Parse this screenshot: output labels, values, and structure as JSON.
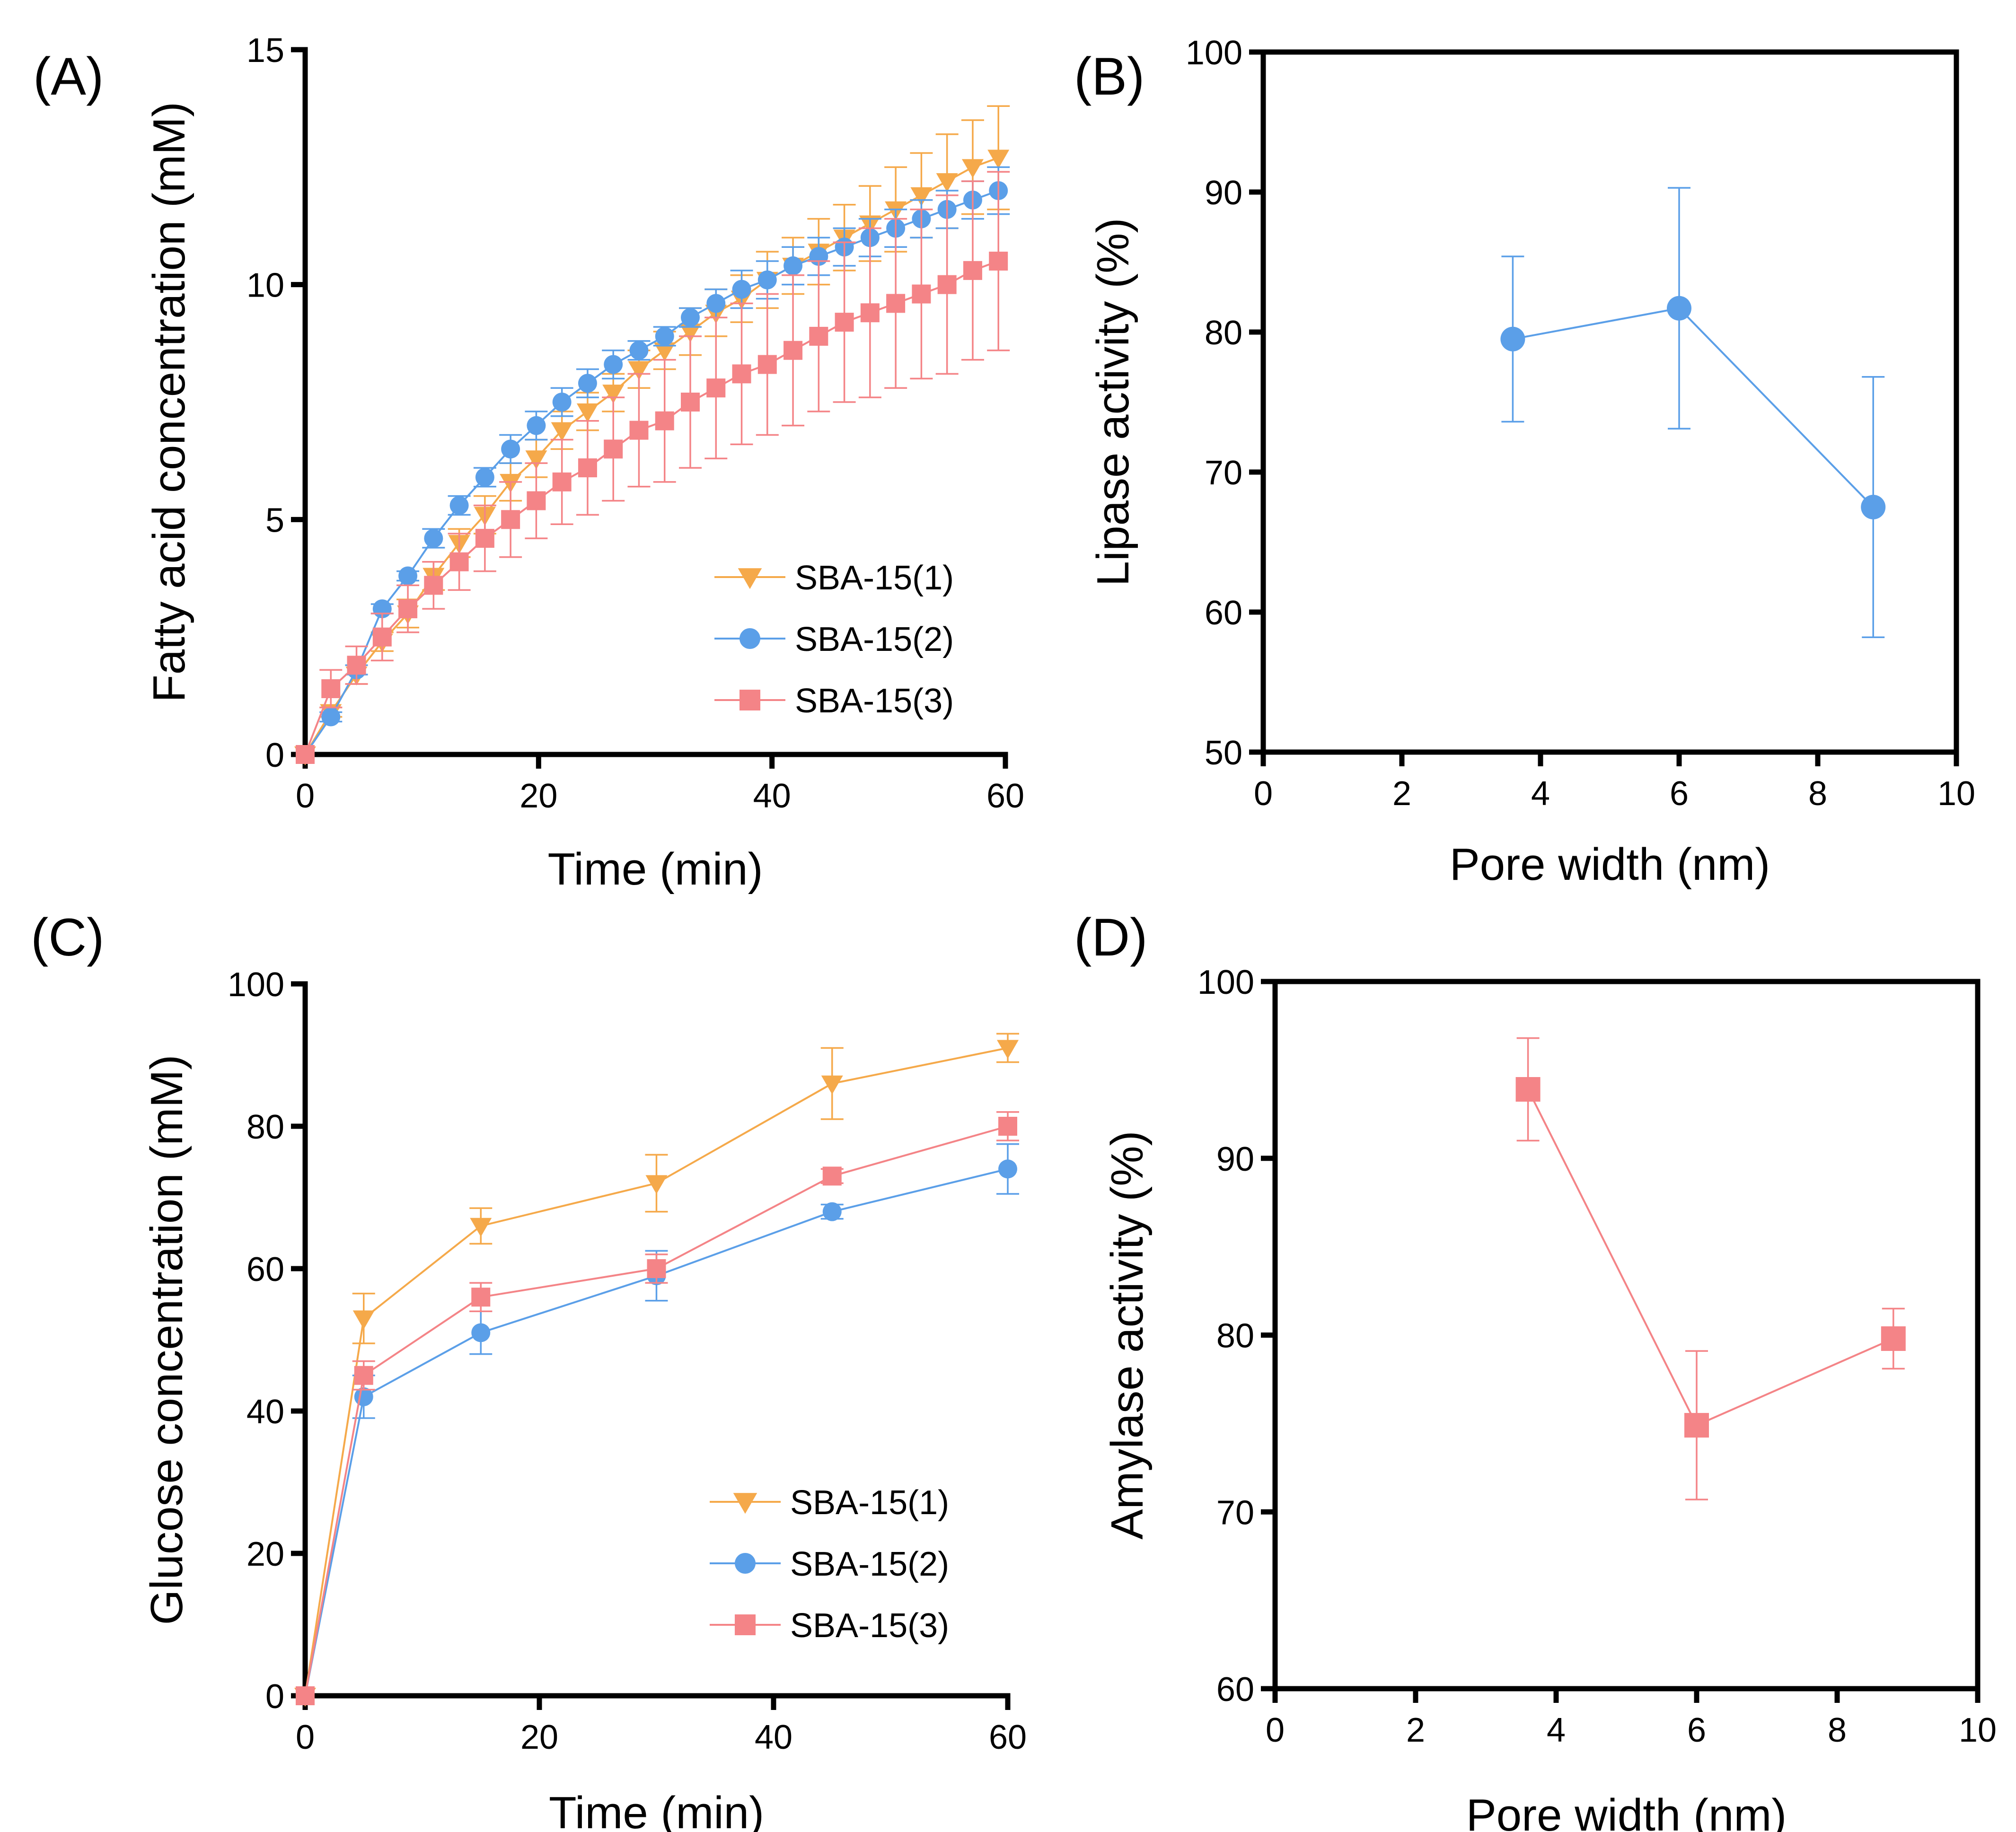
{
  "colors": {
    "orange": "#F5A94A",
    "blue": "#5B9FE8",
    "red": "#F48487",
    "axis": "#000000"
  },
  "chart_data": [
    {
      "panel": "(A)",
      "type": "line",
      "xlabel": "Time (min)",
      "ylabel": "Fatty acid concentration (mM)",
      "xlim": [
        0,
        60
      ],
      "ylim": [
        0,
        15
      ],
      "xticks": [
        0,
        20,
        40,
        60
      ],
      "yticks": [
        0,
        5,
        10,
        15
      ],
      "grid": false,
      "frame": "open",
      "legend": "bottom-right",
      "series": [
        {
          "name": "SBA-15(1)",
          "color": "orange",
          "marker": "triangle-down",
          "x": [
            0,
            2.2,
            4.4,
            6.6,
            8.8,
            11,
            13.2,
            15.4,
            17.6,
            19.8,
            22,
            24.2,
            26.4,
            28.6,
            30.8,
            33,
            35.2,
            37.4,
            39.6,
            41.8,
            44,
            46.2,
            48.4,
            50.6,
            52.8,
            55,
            57.2,
            59.4
          ],
          "y": [
            0,
            0.9,
            1.7,
            2.4,
            3.0,
            3.8,
            4.5,
            5.1,
            5.8,
            6.3,
            6.9,
            7.3,
            7.7,
            8.2,
            8.6,
            9.0,
            9.4,
            9.7,
            10.1,
            10.4,
            10.7,
            11.0,
            11.3,
            11.6,
            11.9,
            12.2,
            12.5,
            12.7
          ],
          "err": [
            0,
            0.1,
            0.2,
            0.2,
            0.3,
            0.3,
            0.3,
            0.4,
            0.4,
            0.4,
            0.4,
            0.4,
            0.4,
            0.4,
            0.4,
            0.5,
            0.5,
            0.5,
            0.6,
            0.6,
            0.7,
            0.7,
            0.8,
            0.9,
            0.9,
            1.0,
            1.0,
            1.1
          ]
        },
        {
          "name": "SBA-15(2)",
          "color": "blue",
          "marker": "circle",
          "x": [
            0,
            2.2,
            4.4,
            6.6,
            8.8,
            11,
            13.2,
            15.4,
            17.6,
            19.8,
            22,
            24.2,
            26.4,
            28.6,
            30.8,
            33,
            35.2,
            37.4,
            39.6,
            41.8,
            44,
            46.2,
            48.4,
            50.6,
            52.8,
            55,
            57.2,
            59.4
          ],
          "y": [
            0,
            0.8,
            1.8,
            3.1,
            3.8,
            4.6,
            5.3,
            5.9,
            6.5,
            7.0,
            7.5,
            7.9,
            8.3,
            8.6,
            8.9,
            9.3,
            9.6,
            9.9,
            10.1,
            10.4,
            10.6,
            10.8,
            11.0,
            11.2,
            11.4,
            11.6,
            11.8,
            12.0
          ],
          "err": [
            0,
            0.1,
            0.1,
            0.1,
            0.1,
            0.2,
            0.2,
            0.2,
            0.3,
            0.3,
            0.3,
            0.3,
            0.3,
            0.2,
            0.2,
            0.2,
            0.3,
            0.4,
            0.4,
            0.4,
            0.4,
            0.4,
            0.4,
            0.4,
            0.4,
            0.4,
            0.4,
            0.5
          ]
        },
        {
          "name": "SBA-15(3)",
          "color": "red",
          "marker": "square",
          "x": [
            0,
            2.2,
            4.4,
            6.6,
            8.8,
            11,
            13.2,
            15.4,
            17.6,
            19.8,
            22,
            24.2,
            26.4,
            28.6,
            30.8,
            33,
            35.2,
            37.4,
            39.6,
            41.8,
            44,
            46.2,
            48.4,
            50.6,
            52.8,
            55,
            57.2,
            59.4
          ],
          "y": [
            0,
            1.4,
            1.9,
            2.5,
            3.1,
            3.6,
            4.1,
            4.6,
            5.0,
            5.4,
            5.8,
            6.1,
            6.5,
            6.9,
            7.1,
            7.5,
            7.8,
            8.1,
            8.3,
            8.6,
            8.9,
            9.2,
            9.4,
            9.6,
            9.8,
            10.0,
            10.3,
            10.5
          ],
          "err": [
            0,
            0.4,
            0.4,
            0.5,
            0.5,
            0.5,
            0.6,
            0.7,
            0.8,
            0.8,
            0.9,
            1.0,
            1.1,
            1.2,
            1.3,
            1.4,
            1.5,
            1.5,
            1.5,
            1.6,
            1.6,
            1.7,
            1.8,
            1.8,
            1.8,
            1.9,
            1.9,
            1.9
          ]
        }
      ]
    },
    {
      "panel": "(B)",
      "type": "line",
      "xlabel": "Pore width (nm)",
      "ylabel": "Lipase activity (%)",
      "xlim": [
        0,
        10
      ],
      "ylim": [
        50,
        100
      ],
      "xticks": [
        0,
        2,
        4,
        6,
        8,
        10
      ],
      "yticks": [
        50,
        60,
        70,
        80,
        90,
        100
      ],
      "grid": false,
      "frame": "box",
      "legend": "none",
      "series": [
        {
          "name": "Lipase",
          "color": "blue",
          "marker": "circle",
          "x": [
            3.6,
            6.0,
            8.8
          ],
          "y": [
            79.5,
            81.7,
            67.5
          ],
          "err": [
            5.9,
            8.6,
            9.3
          ]
        }
      ]
    },
    {
      "panel": "(C)",
      "type": "line",
      "xlabel": "Time (min)",
      "ylabel": "Glucose concentration (mM)",
      "xlim": [
        0,
        60
      ],
      "ylim": [
        0,
        100
      ],
      "xticks": [
        0,
        20,
        40,
        60
      ],
      "yticks": [
        0,
        20,
        40,
        60,
        80,
        100
      ],
      "grid": false,
      "frame": "open",
      "legend": "bottom-right",
      "series": [
        {
          "name": "SBA-15(1)",
          "color": "orange",
          "marker": "triangle-down",
          "x": [
            0,
            5,
            15,
            30,
            45,
            60
          ],
          "y": [
            0,
            53,
            66,
            72,
            86,
            91
          ],
          "err": [
            0,
            3.5,
            2.5,
            4,
            5,
            2
          ]
        },
        {
          "name": "SBA-15(2)",
          "color": "blue",
          "marker": "circle",
          "x": [
            0,
            5,
            15,
            30,
            45,
            60
          ],
          "y": [
            0,
            42,
            51,
            59,
            68,
            74
          ],
          "err": [
            0,
            3,
            3,
            3.5,
            1,
            3.5
          ]
        },
        {
          "name": "SBA-15(3)",
          "color": "red",
          "marker": "square",
          "x": [
            0,
            5,
            15,
            30,
            45,
            60
          ],
          "y": [
            0,
            45,
            56,
            60,
            73,
            80
          ],
          "err": [
            0,
            2,
            2,
            2,
            1,
            2
          ]
        }
      ]
    },
    {
      "panel": "(D)",
      "type": "line",
      "xlabel": "Pore width (nm)",
      "ylabel": "Amylase activity (%)",
      "xlim": [
        0,
        10
      ],
      "ylim": [
        60,
        100
      ],
      "xticks": [
        0,
        2,
        4,
        6,
        8,
        10
      ],
      "yticks": [
        60,
        70,
        80,
        90,
        100
      ],
      "grid": false,
      "frame": "box",
      "legend": "none",
      "series": [
        {
          "name": "Amylase",
          "color": "red",
          "marker": "square",
          "x": [
            3.6,
            6.0,
            8.8
          ],
          "y": [
            93.9,
            74.9,
            79.8
          ],
          "err": [
            2.9,
            4.2,
            1.7
          ]
        }
      ]
    }
  ]
}
